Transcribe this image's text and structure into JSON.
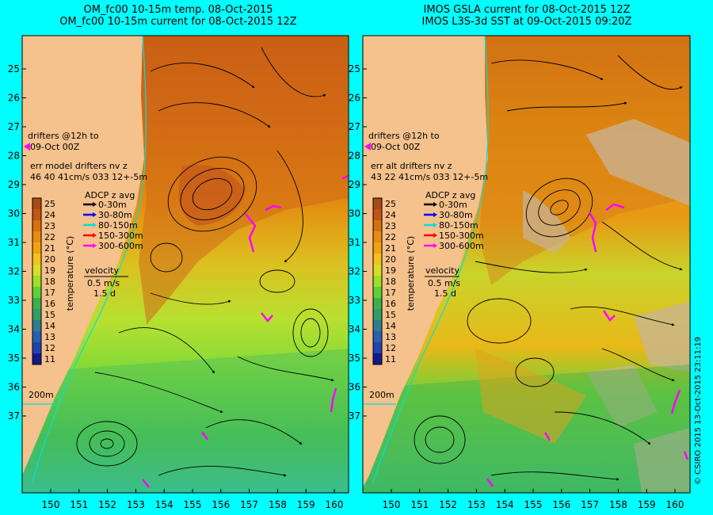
{
  "panels": [
    {
      "title_line1": "OM_fc00 10-15m temp. 08-Oct-2015",
      "title_line2": "OM_fc00 10-15m current for 08-Oct-2015 12Z",
      "drifters_line1": "drifters @12h to",
      "drifters_line2": "09-Oct 00Z",
      "err_line1": "err model drifters nv z",
      "err_line2": "46 40 41cm/s 033 12+-5m"
    },
    {
      "title_line1": "IMOS GSLA current for 08-Oct-2015 12Z",
      "title_line2": "IMOS L3S-3d SST at 09-Oct-2015 09:20Z",
      "drifters_line1": "drifters @12h to",
      "drifters_line2": "09-Oct 00Z",
      "err_line1": "err alt drifters nv z",
      "err_line2": "43 22 41cm/s 033 12+-5m"
    }
  ],
  "adcp": {
    "title": "ADCP z avg",
    "items": [
      {
        "label": "0-30m",
        "color": "#000000"
      },
      {
        "label": "30-80m",
        "color": "#0000ff"
      },
      {
        "label": "80-150m",
        "color": "#00dddd"
      },
      {
        "label": "150-300m",
        "color": "#ff0000"
      },
      {
        "label": "300-600m",
        "color": "#ff00ff"
      }
    ]
  },
  "velocity": {
    "label": "velocity",
    "speed": "0.5 m/s",
    "duration": "1.5 d"
  },
  "colorbar": {
    "label": "temperature (°C)",
    "ticks": [
      "25",
      "24",
      "23",
      "22",
      "21",
      "20",
      "19",
      "18",
      "17",
      "16",
      "15",
      "14",
      "13",
      "12",
      "11"
    ],
    "colors": [
      "#a84a14",
      "#c25512",
      "#d9700f",
      "#e88c10",
      "#f2a20e",
      "#f2c21e",
      "#d9dd28",
      "#9ae028",
      "#5fd03a",
      "#3cb04a",
      "#349c6a",
      "#2c7e8e",
      "#2860b0",
      "#2044b0",
      "#141a8a"
    ]
  },
  "contour_label": "200m",
  "lat_ticks": [
    "25",
    "26",
    "27",
    "28",
    "29",
    "30",
    "31",
    "32",
    "33",
    "34",
    "35",
    "36",
    "37"
  ],
  "lon_ticks": [
    "150",
    "151",
    "152",
    "153",
    "154",
    "155",
    "156",
    "157",
    "158",
    "159",
    "160"
  ],
  "copyright": "© CSIRO 2015   13-Oct-2015 23:11:19",
  "colors": {
    "land": "#f5c18c",
    "background": "#00ffff",
    "drifter": "#ff00ff"
  }
}
